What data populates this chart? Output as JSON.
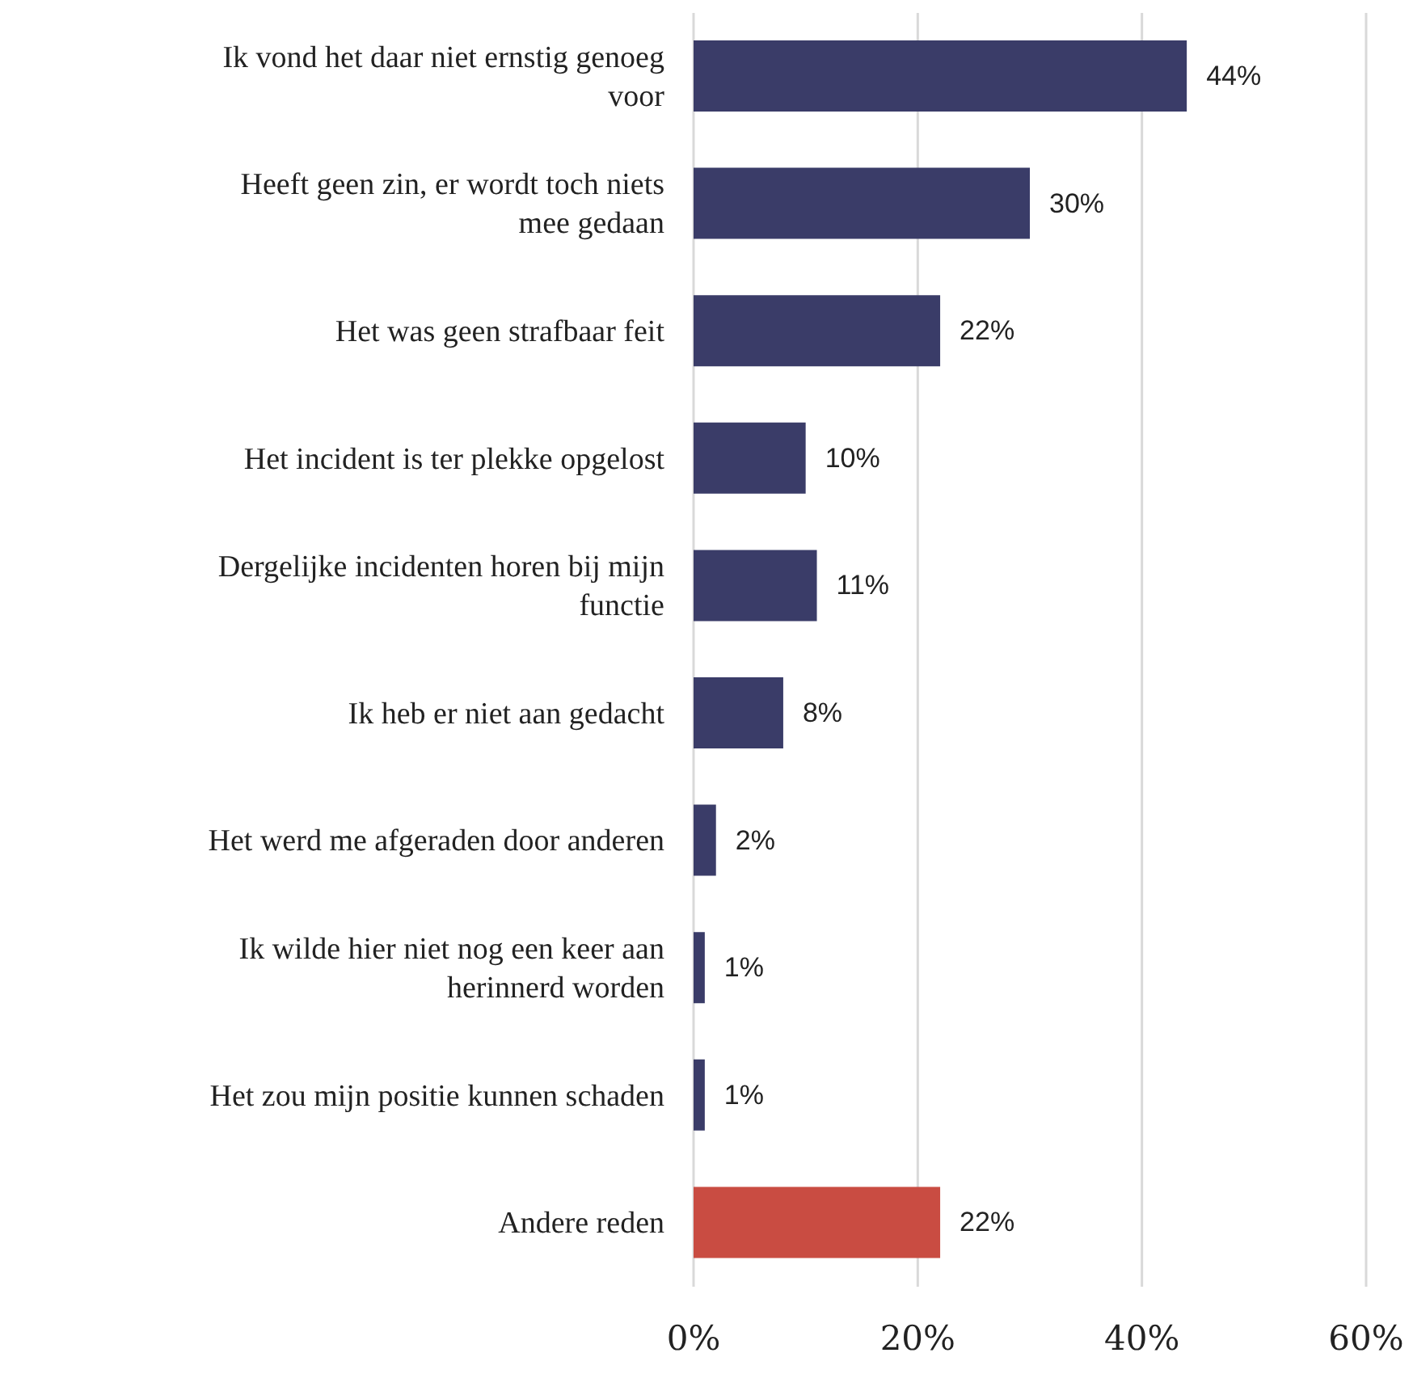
{
  "chart_data": {
    "type": "bar",
    "orientation": "horizontal",
    "categories": [
      "Ik vond het daar niet ernstig genoeg voor",
      "Heeft geen zin, er wordt toch niets mee gedaan",
      "Het was geen strafbaar feit",
      "Het incident is ter plekke opgelost",
      "Dergelijke incidenten horen bij mijn functie",
      "Ik heb er niet aan gedacht",
      "Het werd me afgeraden door anderen",
      "Ik wilde hier niet nog een keer aan herinnerd worden",
      "Het zou mijn positie kunnen schaden",
      "Andere reden"
    ],
    "values": [
      44,
      30,
      22,
      10,
      11,
      8,
      2,
      1,
      1,
      22
    ],
    "value_labels": [
      "44%",
      "30%",
      "22%",
      "10%",
      "11%",
      "8%",
      "2%",
      "1%",
      "1%",
      "22%"
    ],
    "colors": [
      "#3a3c68",
      "#3a3c68",
      "#3a3c68",
      "#3a3c68",
      "#3a3c68",
      "#3a3c68",
      "#3a3c68",
      "#3a3c68",
      "#3a3c68",
      "#c94c42"
    ],
    "xlim": [
      0,
      60
    ],
    "xticks": [
      {
        "value": 0,
        "label": "0%"
      },
      {
        "value": 20,
        "label": "20%"
      },
      {
        "value": 40,
        "label": "40%"
      },
      {
        "value": 60,
        "label": "60%"
      }
    ],
    "grid": "x"
  }
}
